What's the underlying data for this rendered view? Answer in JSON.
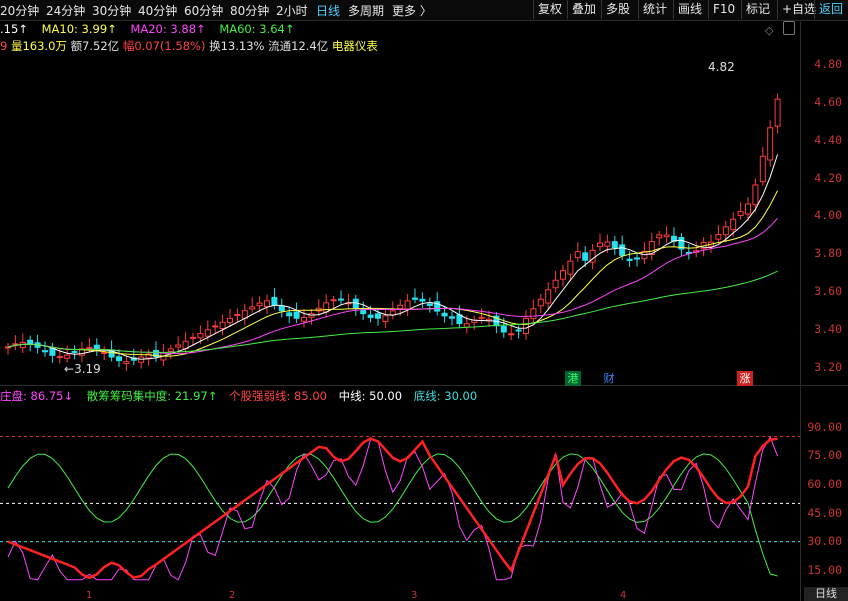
{
  "toolbar": {
    "periods": [
      "20分钟",
      "24分钟",
      "30分钟",
      "40分钟",
      "60分钟",
      "80分钟",
      "2小时",
      "日线",
      "多周期",
      "更多 〉"
    ],
    "active_period": "日线",
    "buttons": [
      "复权",
      "叠加",
      "多股",
      "统计",
      "画线",
      "F10",
      "标记",
      "+自选",
      "返回"
    ]
  },
  "ma_legend": {
    "price_partial": ".15↑",
    "ma10": "MA10: 3.99↑",
    "ma20": "MA20: 3.88↑",
    "ma60": "MA60: 3.64↑"
  },
  "info_line": {
    "vol_prefix": "9",
    "volume": "量163.0万",
    "amount": "额7.52亿",
    "change": "幅0.07(1.58%)",
    "turnover": "换13.13%",
    "float": "流通12.4亿",
    "sector": "电器仪表"
  },
  "price_axis": {
    "labels": [
      "4.80",
      "4.60",
      "4.40",
      "4.20",
      "4.00",
      "3.80",
      "3.60",
      "3.40",
      "3.20"
    ]
  },
  "annotations": {
    "high": "4.82",
    "low": "3.19"
  },
  "event_flags": [
    {
      "text": "港",
      "color": "#22bb55"
    },
    {
      "text": "财",
      "color": "#4488ff"
    },
    {
      "text": "涨",
      "color": "#ffffff",
      "bg": "#cc2222"
    }
  ],
  "indicator_legend": {
    "main": "庄盘: 86.75↓",
    "chip": "散筹筹码集中度: 21.97↑",
    "strong": "个股强弱线: 85.00",
    "mid": "中线: 50.00",
    "bottom": "底线: 30.00"
  },
  "indicator_axis": {
    "labels": [
      "90.00",
      "75.00",
      "60.00",
      "45.00",
      "30.00",
      "15.00"
    ]
  },
  "x_month_labels": [
    "1",
    "2",
    "3",
    "4"
  ],
  "corner_badge": "日线",
  "colors": {
    "up": "#ff3b3b",
    "down": "#25e1f0",
    "ma5": "#ffffff",
    "ma10": "#ffff44",
    "ma20": "#ff44ff",
    "ma60": "#44ee44"
  }
}
